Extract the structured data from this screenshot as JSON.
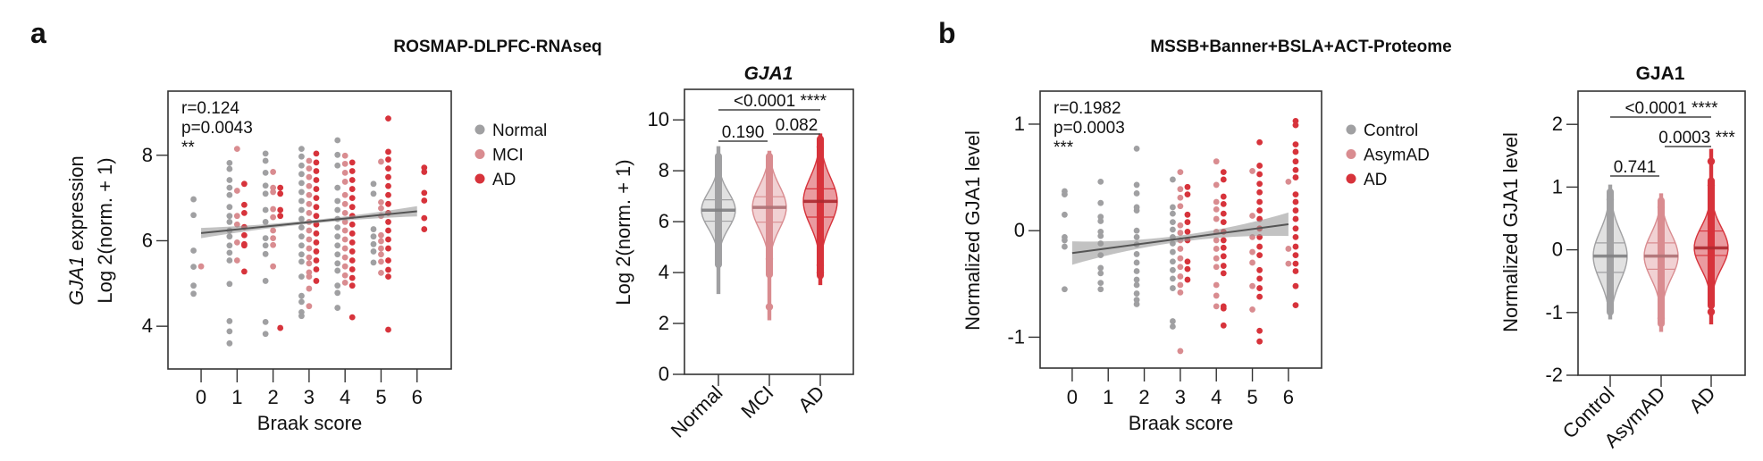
{
  "figure": {
    "panel_a_label": "a",
    "panel_b_label": "b",
    "panel_a_title": "ROSMAP-DLPFC-RNAseq",
    "panel_b_title": "MSSB+Banner+BSLA+ACT-Proteome"
  },
  "chart_data": [
    {
      "id": "scatter-a",
      "type": "scatter",
      "xlabel": "Braak score",
      "ylabel_gene": "GJA1",
      "ylabel_rest": " expression",
      "ylabel_line2": "Log 2(norm. + 1)",
      "xticks": [
        0,
        1,
        2,
        3,
        4,
        5,
        6
      ],
      "yticks": [
        4,
        6,
        8
      ],
      "xlim": [
        -0.92,
        6.95
      ],
      "ylim": [
        3.0,
        9.5
      ],
      "stats": [
        "r=0.124",
        "p=0.0043",
        "**"
      ],
      "legend": {
        "position": "right",
        "entries": [
          "Normal",
          "MCI",
          "AD"
        ]
      },
      "colors": [
        "#a0a0a2",
        "#d98c90",
        "#d7333b"
      ],
      "fit": {
        "x": [
          0,
          6
        ],
        "y": [
          6.18,
          6.69
        ],
        "ci_halfwidth_ends": 0.12,
        "ci_halfwidth_mid": 0.04
      },
      "groups": [
        {
          "braak": 0,
          "group": 0,
          "y": [
            6.97,
            6.6,
            5.77,
            5.39,
            4.95,
            4.76
          ]
        },
        {
          "braak": 0,
          "group": 1,
          "y": [
            5.4
          ]
        },
        {
          "braak": 1,
          "group": 0,
          "y": [
            7.82,
            7.68,
            7.42,
            7.24,
            7.07,
            6.79,
            6.58,
            6.44,
            6.24,
            6.1,
            5.89,
            5.72,
            5.54,
            4.99,
            4.12,
            3.88,
            3.6
          ]
        },
        {
          "braak": 1,
          "group": 1,
          "y": [
            8.15,
            7.17,
            6.58,
            6.38,
            5.96,
            5.54
          ]
        },
        {
          "braak": 1,
          "group": 2,
          "y": [
            7.33,
            6.84,
            6.65,
            6.32,
            6.13,
            5.92,
            5.89,
            5.28
          ]
        },
        {
          "braak": 2,
          "group": 0,
          "y": [
            8.04,
            7.87,
            7.59,
            7.29,
            7.1,
            6.72,
            6.44,
            6.06,
            5.89,
            5.69,
            5.06,
            4.1,
            3.82
          ]
        },
        {
          "braak": 2,
          "group": 1,
          "y": [
            7.61,
            7.24,
            7.14,
            6.74,
            6.55,
            6.24,
            6.06,
            5.9,
            5.4
          ]
        },
        {
          "braak": 2,
          "group": 2,
          "y": [
            7.24,
            7.1,
            6.72,
            6.58,
            3.96
          ]
        },
        {
          "braak": 3,
          "group": 0,
          "y": [
            8.15,
            7.97,
            7.76,
            7.56,
            7.35,
            7.14,
            6.93,
            6.72,
            6.51,
            6.31,
            6.1,
            5.89,
            5.68,
            5.51,
            5.16,
            4.71,
            4.57,
            4.33,
            4.24
          ]
        },
        {
          "braak": 3,
          "group": 1,
          "y": [
            7.87,
            7.69,
            7.49,
            7.28,
            7.07,
            6.86,
            6.65,
            6.44,
            6.24,
            6.03,
            5.82,
            5.61,
            5.47,
            5.26,
            5.16,
            4.88,
            4.47
          ]
        },
        {
          "braak": 3,
          "group": 2,
          "y": [
            8.04,
            7.83,
            7.63,
            7.42,
            7.21,
            7.0,
            6.79,
            6.58,
            6.38,
            6.17,
            5.96,
            5.75,
            5.54,
            5.33,
            5.06
          ]
        },
        {
          "braak": 4,
          "group": 0,
          "y": [
            8.35,
            8.01,
            7.76,
            7.24,
            6.93,
            6.72,
            6.51,
            6.31,
            6.1,
            5.89,
            5.68,
            5.47,
            5.3,
            4.95,
            4.78,
            4.43
          ]
        },
        {
          "braak": 4,
          "group": 1,
          "y": [
            7.99,
            7.8,
            7.59,
            7.38,
            7.07,
            6.86,
            6.65,
            6.44,
            6.24,
            6.03,
            5.82,
            5.61,
            5.4,
            5.19,
            5.02
          ]
        },
        {
          "braak": 4,
          "group": 2,
          "y": [
            7.83,
            7.63,
            7.42,
            7.21,
            7.0,
            6.79,
            6.58,
            6.38,
            6.17,
            5.96,
            5.75,
            5.54,
            5.33,
            5.13,
            4.95,
            4.21
          ]
        },
        {
          "braak": 5,
          "group": 0,
          "y": [
            7.33,
            7.1,
            6.27,
            6.1,
            5.92,
            5.75,
            5.49
          ]
        },
        {
          "braak": 5,
          "group": 1,
          "y": [
            7.85,
            6.9,
            6.76,
            6.58,
            6.13,
            5.99,
            5.82,
            5.68,
            5.51,
            5.25
          ]
        },
        {
          "braak": 5,
          "group": 2,
          "y": [
            8.86,
            8.08,
            7.9,
            7.69,
            7.49,
            7.28,
            7.07,
            6.86,
            6.65,
            6.44,
            6.24,
            6.03,
            5.82,
            5.54,
            5.32,
            5.16,
            3.92
          ]
        },
        {
          "braak": 6,
          "group": 2,
          "y": [
            7.71,
            7.61,
            7.12,
            6.94,
            6.53,
            6.27
          ]
        }
      ]
    },
    {
      "id": "violin-a",
      "type": "violin",
      "title": "GJA1",
      "ylabel": "Log 2(norm. + 1)",
      "categories": [
        "Normal",
        "MCI",
        "AD"
      ],
      "yticks": [
        0,
        2,
        4,
        6,
        8,
        10
      ],
      "ylim": [
        0,
        11.2
      ],
      "colors": [
        "#a0a0a2",
        "#d98c90",
        "#d7333b"
      ],
      "fills": [
        "#dcdcdc",
        "#efc9cb",
        "#e68a8f"
      ],
      "stats": [
        {
          "median": 6.45,
          "q1": 6.02,
          "q3": 6.86,
          "min": 3.18,
          "max": 8.94,
          "outliers": []
        },
        {
          "median": 6.56,
          "q1": 5.98,
          "q3": 6.98,
          "min": 2.15,
          "max": 8.76,
          "outliers": [
            4.53,
            2.65
          ]
        },
        {
          "median": 6.8,
          "q1": 6.18,
          "q3": 7.29,
          "min": 3.53,
          "max": 9.44,
          "outliers": [
            8.94,
            4.29,
            4.0
          ]
        }
      ],
      "comparisons": [
        {
          "from": 0,
          "to": 2,
          "label": "<0.0001 ****"
        },
        {
          "from": 0,
          "to": 1,
          "label": "0.190"
        },
        {
          "from": 1,
          "to": 2,
          "label": "0.082"
        }
      ]
    },
    {
      "id": "scatter-b",
      "type": "scatter",
      "xlabel": "Braak score",
      "ylabel": "Normalized GJA1 level",
      "xticks": [
        0,
        1,
        2,
        3,
        4,
        5,
        6
      ],
      "yticks": [
        -1,
        0,
        1
      ],
      "xlim": [
        -0.89,
        6.92
      ],
      "ylim": [
        -1.29,
        1.31
      ],
      "stats": [
        "r=0.1982",
        "p=0.0003",
        "***"
      ],
      "legend": {
        "position": "right",
        "entries": [
          "Control",
          "AsymAD",
          "AD"
        ]
      },
      "colors": [
        "#a0a0a2",
        "#d98c90",
        "#d7333b"
      ],
      "fit": {
        "x": [
          0,
          6
        ],
        "y": [
          -0.21,
          0.06
        ],
        "ci_halfwidth_ends": 0.11,
        "ci_halfwidth_mid": 0.03
      },
      "groups": [
        {
          "braak": 0,
          "group": 0,
          "y": [
            0.37,
            0.34,
            0.15,
            -0.06,
            -0.09,
            -0.15,
            -0.55
          ]
        },
        {
          "braak": 1,
          "group": 0,
          "y": [
            0.46,
            0.26,
            0.13,
            0.09,
            -0.01,
            -0.05,
            -0.12,
            -0.23,
            -0.35,
            -0.4,
            -0.49,
            -0.55
          ]
        },
        {
          "braak": 2,
          "group": 0,
          "y": [
            0.77,
            0.43,
            0.35,
            0.22,
            0.19,
            0.0,
            -0.06,
            -0.13,
            -0.22,
            -0.3,
            -0.38,
            -0.46,
            -0.51,
            -0.59,
            -0.65,
            -0.69
          ]
        },
        {
          "braak": 3,
          "group": 0,
          "y": [
            0.48,
            0.22,
            0.16,
            0.08,
            0.01,
            -0.06,
            -0.12,
            -0.2,
            -0.29,
            -0.37,
            -0.45,
            -0.54,
            -0.85,
            -0.9
          ]
        },
        {
          "braak": 3,
          "group": 1,
          "y": [
            0.55,
            0.39,
            0.31,
            0.23,
            0.05,
            -0.02,
            -0.09,
            -0.17,
            -0.26,
            -0.34,
            -0.43,
            -0.51,
            -0.58,
            -1.13
          ]
        },
        {
          "braak": 3,
          "group": 2,
          "y": [
            0.41,
            0.34,
            0.15,
            0.08,
            -0.01,
            -0.09,
            -0.29,
            -0.36,
            -0.46
          ]
        },
        {
          "braak": 4,
          "group": 1,
          "y": [
            0.65,
            0.43,
            0.27,
            0.2,
            0.11,
            -0.01,
            -0.09,
            -0.17,
            -0.26,
            -0.34,
            -0.51,
            -0.61,
            -0.71
          ]
        },
        {
          "braak": 4,
          "group": 2,
          "y": [
            0.55,
            0.48,
            0.32,
            0.25,
            0.16,
            0.08,
            -0.01,
            -0.09,
            -0.16,
            -0.24,
            -0.33,
            -0.4,
            -0.71,
            -0.73,
            -0.89
          ]
        },
        {
          "braak": 5,
          "group": 1,
          "y": [
            0.56,
            0.14,
            -0.06,
            -0.2,
            -0.3,
            -0.52,
            -0.74
          ]
        },
        {
          "braak": 5,
          "group": 2,
          "y": [
            0.83,
            0.61,
            0.53,
            0.44,
            0.36,
            0.27,
            0.19,
            0.11,
            0.02,
            -0.06,
            -0.15,
            -0.23,
            -0.37,
            -0.45,
            -0.54,
            -0.62,
            -0.94,
            -1.04
          ]
        },
        {
          "braak": 6,
          "group": 1,
          "y": [
            0.46,
            -0.17,
            -0.31
          ]
        },
        {
          "braak": 6,
          "group": 2,
          "y": [
            1.03,
            0.99,
            0.81,
            0.74,
            0.65,
            0.57,
            0.5,
            0.34,
            0.27,
            0.19,
            0.11,
            0.02,
            -0.06,
            -0.15,
            -0.23,
            -0.31,
            -0.38,
            -0.52,
            -0.7
          ]
        }
      ]
    },
    {
      "id": "violin-b",
      "type": "violin",
      "title": "GJA1",
      "ylabel": "Normalized GJA1 level",
      "categories": [
        "Control",
        "AsymAD",
        "AD"
      ],
      "yticks": [
        -2,
        -1,
        0,
        1,
        2
      ],
      "ylim": [
        -2,
        2.53
      ],
      "colors": [
        "#a0a0a2",
        "#d98c90",
        "#d7333b"
      ],
      "fills": [
        "#dcdcdc",
        "#efc9cb",
        "#e68a8f"
      ],
      "stats": [
        {
          "median": -0.1,
          "q1": -0.36,
          "q3": 0.11,
          "min": -1.1,
          "max": 1.03,
          "outliers": [
            0.8,
            -0.82
          ]
        },
        {
          "median": -0.1,
          "q1": -0.31,
          "q3": 0.11,
          "min": -1.3,
          "max": 0.89,
          "outliers": [
            0.68,
            -1.09
          ]
        },
        {
          "median": 0.03,
          "q1": -0.09,
          "q3": 0.3,
          "min": -1.18,
          "max": 1.6,
          "outliers": [
            1.41,
            1.03,
            -0.99
          ]
        }
      ],
      "comparisons": [
        {
          "from": 0,
          "to": 2,
          "label": "<0.0001 ****"
        },
        {
          "from": 1,
          "to": 2,
          "label": "0.0003 ***"
        },
        {
          "from": 0,
          "to": 1,
          "label": "0.741"
        }
      ]
    }
  ]
}
